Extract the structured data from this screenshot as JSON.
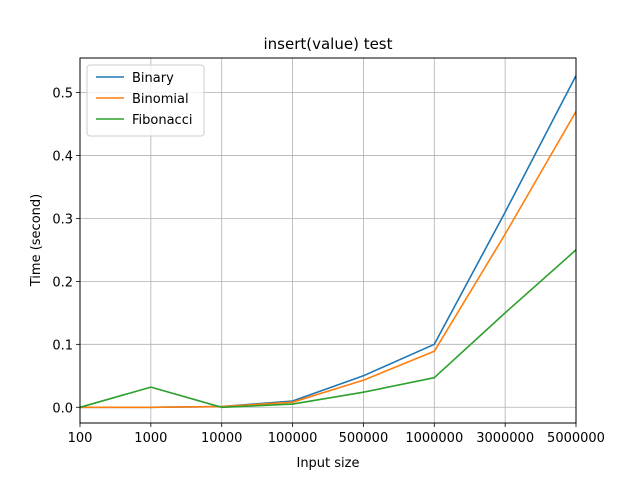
{
  "chart_data": {
    "type": "line",
    "title": "insert(value) test",
    "xlabel": "Input size",
    "ylabel": "Time (second)",
    "categories": [
      "100",
      "1000",
      "10000",
      "100000",
      "500000",
      "1000000",
      "3000000",
      "5000000"
    ],
    "ylim": [
      -0.025,
      0.555
    ],
    "yticks": [
      0.0,
      0.1,
      0.2,
      0.3,
      0.4,
      0.5
    ],
    "ytick_labels": [
      "0.0",
      "0.1",
      "0.2",
      "0.3",
      "0.4",
      "0.5"
    ],
    "grid": true,
    "legend": "top-left",
    "series": [
      {
        "name": "Binary",
        "color": "#1f77b4",
        "values": [
          0.0,
          0.0,
          0.001,
          0.01,
          0.05,
          0.1,
          0.31,
          0.527
        ]
      },
      {
        "name": "Binomial",
        "color": "#ff7f0e",
        "values": [
          0.0,
          0.0,
          0.001,
          0.008,
          0.043,
          0.089,
          0.275,
          0.47
        ]
      },
      {
        "name": "Fibonacci",
        "color": "#2ca02c",
        "values": [
          0.0,
          0.032,
          0.0,
          0.005,
          0.024,
          0.047,
          0.15,
          0.25
        ]
      }
    ]
  }
}
